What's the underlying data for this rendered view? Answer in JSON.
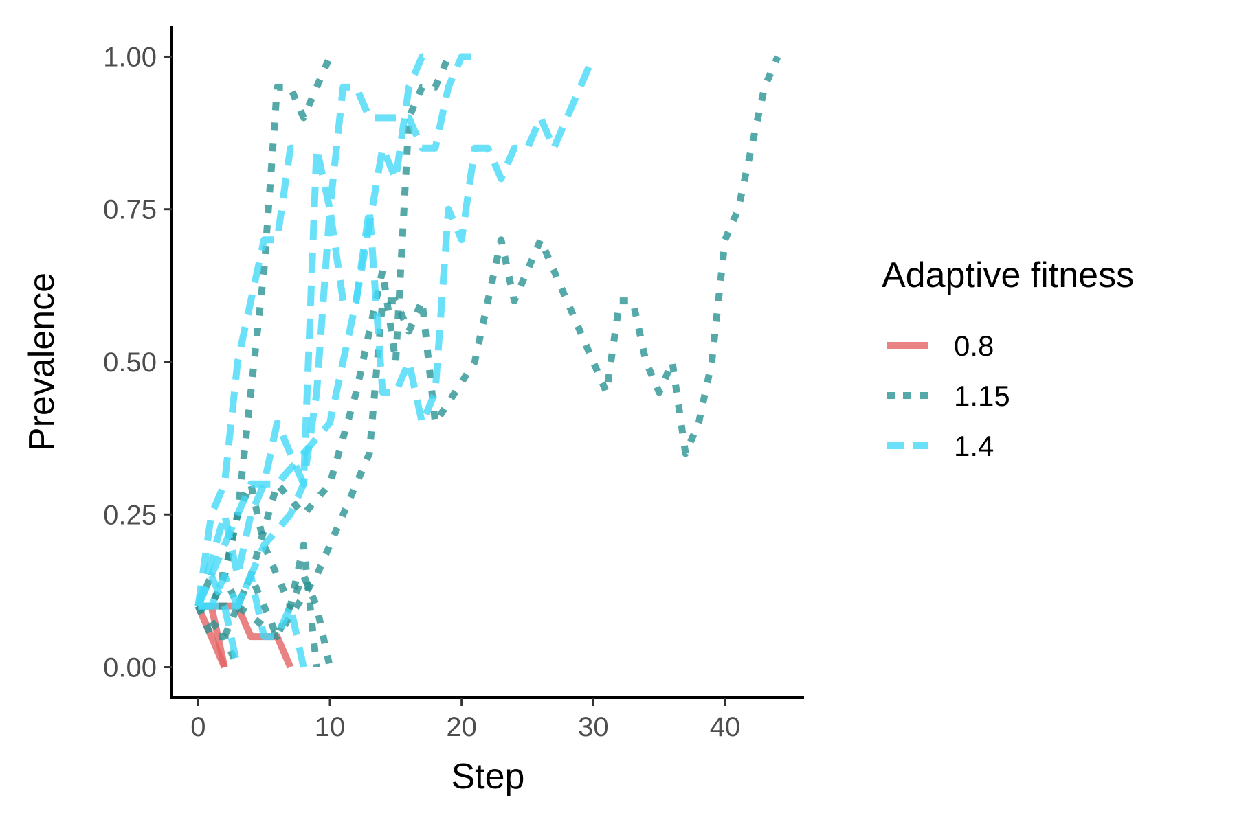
{
  "chart_data": {
    "type": "line",
    "title": "",
    "xlabel": "Step",
    "ylabel": "Prevalence",
    "xlim": [
      -2,
      46
    ],
    "ylim": [
      -0.05,
      1.05
    ],
    "x_ticks": [
      0,
      10,
      20,
      30,
      40
    ],
    "y_ticks": [
      0,
      0.25,
      0.5,
      0.75,
      1
    ],
    "x_tick_labels": [
      "0",
      "10",
      "20",
      "30",
      "40"
    ],
    "y_tick_labels": [
      "0.00",
      "0.25",
      "0.50",
      "0.75",
      "1.00"
    ],
    "grid": false,
    "legend": {
      "title": "Adaptive fitness",
      "position": "right",
      "entries": [
        {
          "label": "0.8",
          "group": "0.8"
        },
        {
          "label": "1.15",
          "group": "1.15"
        },
        {
          "label": "1.4",
          "group": "1.4"
        }
      ]
    },
    "groups": {
      "0.8": {
        "color": "#e36464",
        "style": "solid"
      },
      "1.15": {
        "color": "#2c9494",
        "style": "dotted"
      },
      "1.4": {
        "color": "#45daf7",
        "style": "dashed"
      }
    },
    "series": [
      {
        "group": "0.8",
        "x": [
          0,
          1,
          2
        ],
        "y": [
          0.1,
          0.05,
          0.0
        ]
      },
      {
        "group": "0.8",
        "x": [
          0,
          1,
          2
        ],
        "y": [
          0.1,
          0.1,
          0.0
        ]
      },
      {
        "group": "0.8",
        "x": [
          0,
          1,
          2,
          3,
          4,
          5,
          6,
          7
        ],
        "y": [
          0.1,
          0.1,
          0.1,
          0.1,
          0.05,
          0.05,
          0.05,
          0.0
        ]
      },
      {
        "group": "1.15",
        "x": [
          0,
          1,
          2,
          3
        ],
        "y": [
          0.1,
          0.05,
          0.05,
          0.0
        ]
      },
      {
        "group": "1.15",
        "x": [
          0,
          1,
          2,
          3,
          4,
          5,
          6,
          7,
          8,
          9,
          10
        ],
        "y": [
          0.1,
          0.1,
          0.15,
          0.1,
          0.15,
          0.1,
          0.05,
          0.1,
          0.15,
          0.1,
          0.0
        ]
      },
      {
        "group": "1.15",
        "x": [
          0,
          1,
          2,
          3,
          4,
          5,
          6,
          7,
          8,
          9
        ],
        "y": [
          0.1,
          0.15,
          0.15,
          0.25,
          0.3,
          0.2,
          0.15,
          0.1,
          0.2,
          0.0
        ]
      },
      {
        "group": "1.15",
        "x": [
          0,
          1,
          2,
          3,
          4,
          5,
          6,
          7,
          8,
          9,
          10
        ],
        "y": [
          0.1,
          0.1,
          0.15,
          0.25,
          0.45,
          0.65,
          0.95,
          0.95,
          0.9,
          0.95,
          1.0
        ]
      },
      {
        "group": "1.15",
        "x": [
          0,
          2,
          4,
          6,
          8,
          10,
          12,
          14,
          15,
          16,
          17,
          18,
          19
        ],
        "y": [
          0.1,
          0.05,
          0.15,
          0.3,
          0.25,
          0.3,
          0.45,
          0.65,
          0.5,
          0.9,
          0.95,
          0.95,
          1.0
        ]
      },
      {
        "group": "1.15",
        "x": [
          0,
          3,
          6,
          9,
          11,
          13,
          14,
          15,
          16,
          17,
          18,
          21,
          23,
          24,
          26,
          28,
          30,
          31,
          32,
          33,
          34,
          35,
          36,
          37,
          38,
          39,
          40,
          41,
          42,
          43,
          44
        ],
        "y": [
          0.1,
          0.1,
          0.05,
          0.15,
          0.25,
          0.35,
          0.6,
          0.6,
          0.55,
          0.6,
          0.4,
          0.5,
          0.7,
          0.6,
          0.7,
          0.6,
          0.5,
          0.45,
          0.6,
          0.6,
          0.5,
          0.45,
          0.5,
          0.35,
          0.4,
          0.5,
          0.7,
          0.75,
          0.85,
          0.95,
          1.0
        ]
      },
      {
        "group": "1.4",
        "x": [
          0,
          1,
          2,
          3
        ],
        "y": [
          0.1,
          0.15,
          0.1,
          0.0
        ]
      },
      {
        "group": "1.4",
        "x": [
          0,
          1,
          2,
          3,
          4,
          5,
          6,
          7,
          8
        ],
        "y": [
          0.1,
          0.25,
          0.3,
          0.5,
          0.6,
          0.7,
          0.7,
          0.85,
          0.85
        ]
      },
      {
        "group": "1.4",
        "x": [
          0,
          1,
          2,
          3,
          4,
          5,
          6,
          7,
          8
        ],
        "y": [
          0.1,
          0.1,
          0.15,
          0.1,
          0.15,
          0.05,
          0.05,
          0.1,
          0.0
        ]
      },
      {
        "group": "1.4",
        "x": [
          0,
          2,
          3,
          4,
          5,
          6,
          7,
          8,
          9,
          10,
          11,
          12,
          13,
          14,
          15,
          16,
          17,
          18,
          19,
          20,
          21
        ],
        "y": [
          0.1,
          0.25,
          0.15,
          0.25,
          0.3,
          0.4,
          0.35,
          0.3,
          0.85,
          0.75,
          0.95,
          0.95,
          0.9,
          0.9,
          0.9,
          0.9,
          0.85,
          0.85,
          0.95,
          1.0,
          1.0
        ]
      },
      {
        "group": "1.4",
        "x": [
          0,
          3,
          5,
          7,
          8,
          9,
          10,
          11,
          12,
          13,
          14,
          15,
          16,
          17,
          18,
          19,
          20,
          21,
          22,
          23,
          24,
          25,
          26,
          27,
          28,
          29,
          30
        ],
        "y": [
          0.1,
          0.1,
          0.2,
          0.25,
          0.3,
          0.45,
          0.75,
          0.6,
          0.6,
          0.75,
          0.45,
          0.45,
          0.5,
          0.4,
          0.45,
          0.75,
          0.7,
          0.85,
          0.85,
          0.8,
          0.85,
          0.85,
          0.9,
          0.85,
          0.9,
          0.95,
          1.0
        ]
      },
      {
        "group": "1.4",
        "x": [
          0,
          2,
          4,
          6,
          8,
          10,
          12,
          14,
          15,
          16,
          17,
          18
        ],
        "y": [
          0.1,
          0.2,
          0.3,
          0.3,
          0.35,
          0.4,
          0.6,
          0.85,
          0.8,
          0.95,
          1.0,
          1.0
        ]
      }
    ]
  }
}
